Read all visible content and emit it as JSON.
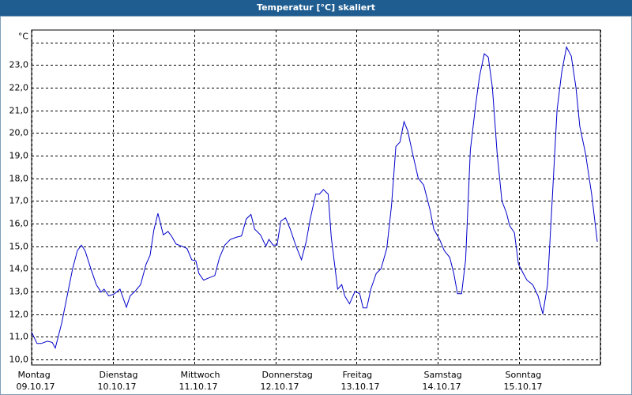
{
  "chart_data": {
    "type": "line",
    "title": "Temperatur [°C] skaliert",
    "xlim": [
      0,
      168
    ],
    "xticks": [
      {
        "value": 0,
        "label": "Montag"
      },
      {
        "value": 24,
        "label": "Dienstag"
      },
      {
        "value": 48,
        "label": "Mittwoch"
      },
      {
        "value": 72,
        "label": "Donnerstag"
      },
      {
        "value": 96,
        "label": "Freitag"
      },
      {
        "value": 120,
        "label": "Samstag"
      },
      {
        "value": 144,
        "label": "Sonntag"
      },
      168
    ],
    "xtick_dates": [
      "09.10.17",
      "10.10.17",
      "11.10.17",
      "12.10.17",
      "13.10.17",
      "14.10.17",
      "15.10.17"
    ],
    "ylim": [
      9.75,
      24.55
    ],
    "yticks": [
      {
        "value": 10,
        "label": "10,0"
      },
      {
        "value": 11,
        "label": "11,0"
      },
      {
        "value": 12,
        "label": "12,0"
      },
      {
        "value": 13,
        "label": "13,0"
      },
      {
        "value": 14,
        "label": "14,0"
      },
      {
        "value": 15,
        "label": "15,0"
      },
      {
        "value": 16,
        "label": "16,0"
      },
      {
        "value": 17,
        "label": "17,0"
      },
      {
        "value": 18,
        "label": "18,0"
      },
      {
        "value": 19,
        "label": "19,0"
      },
      {
        "value": 20,
        "label": "20,0"
      },
      {
        "value": 21,
        "label": "21,0"
      },
      {
        "value": 22,
        "label": "22,0"
      },
      {
        "value": 23,
        "label": "23,0"
      },
      {
        "value": 24,
        "label": "°C"
      }
    ],
    "grid": true,
    "series": [
      {
        "color": "#0000cc",
        "x": [
          0,
          1.6,
          2.8,
          4.7,
          6.1,
          7.0,
          8.9,
          10.5,
          12.1,
          13.5,
          14.7,
          15.8,
          17.5,
          19.1,
          20.5,
          21.4,
          22.8,
          24.5,
          26.1,
          28.0,
          29.1,
          30.8,
          32.2,
          33.8,
          35.0,
          36.1,
          37.3,
          38.9,
          40.3,
          41.5,
          42.6,
          44.3,
          45.9,
          47.3,
          48.5,
          49.4,
          50.8,
          52.4,
          54.1,
          55.5,
          57.1,
          58.7,
          60.6,
          62.0,
          63.4,
          64.8,
          65.9,
          67.6,
          69.2,
          70.1,
          71.3,
          72.5,
          73.6,
          75.0,
          76.4,
          78.1,
          79.7,
          81.1,
          82.3,
          83.9,
          85.0,
          86.2,
          87.6,
          88.5,
          90.4,
          91.6,
          92.5,
          93.9,
          95.5,
          96.9,
          97.9,
          99.0,
          100.2,
          101.8,
          103.2,
          104.9,
          106.3,
          107.6,
          108.8,
          110.0,
          111.1,
          112.3,
          114.2,
          115.8,
          117.7,
          118.8,
          120.5,
          121.9,
          123.5,
          124.7,
          125.8,
          127.0,
          128.2,
          129.6,
          131.2,
          132.3,
          133.7,
          134.9,
          136.1,
          137.5,
          138.9,
          140.3,
          141.2,
          142.6,
          143.8,
          145.2,
          146.3,
          148.0,
          149.6,
          151.0,
          152.4,
          153.8,
          155.2,
          156.6,
          158.0,
          159.4,
          160.8,
          161.9,
          163.6,
          165.4,
          167.1
        ],
        "values": [
          11.2,
          10.7,
          10.7,
          10.8,
          10.75,
          10.5,
          11.6,
          12.8,
          14.0,
          14.8,
          15.05,
          14.8,
          14.0,
          13.3,
          12.97,
          13.1,
          12.8,
          12.9,
          13.1,
          12.3,
          12.8,
          13.05,
          13.3,
          14.2,
          14.6,
          15.7,
          16.45,
          15.5,
          15.65,
          15.4,
          15.1,
          15.0,
          14.9,
          14.4,
          14.35,
          13.8,
          13.5,
          13.6,
          13.7,
          14.5,
          15.05,
          15.3,
          15.4,
          15.45,
          16.2,
          16.4,
          15.75,
          15.5,
          15.0,
          15.3,
          15.05,
          15.05,
          16.1,
          16.25,
          15.75,
          15.0,
          14.4,
          15.2,
          16.2,
          17.3,
          17.3,
          17.5,
          17.3,
          15.4,
          13.1,
          13.3,
          12.8,
          12.45,
          13.0,
          12.9,
          12.27,
          12.27,
          13.1,
          13.8,
          14.0,
          14.9,
          16.8,
          19.4,
          19.6,
          20.5,
          20.1,
          19.25,
          18.0,
          17.7,
          16.6,
          15.75,
          15.3,
          14.8,
          14.5,
          13.8,
          12.9,
          12.9,
          14.4,
          19.25,
          21.3,
          22.5,
          23.5,
          23.35,
          22.0,
          19.1,
          17.0,
          16.45,
          15.9,
          15.6,
          14.2,
          13.8,
          13.5,
          13.3,
          12.8,
          12.0,
          13.3,
          17.1,
          21.0,
          22.7,
          23.8,
          23.4,
          22.0,
          20.3,
          19.1,
          17.3,
          15.2
        ]
      }
    ]
  }
}
